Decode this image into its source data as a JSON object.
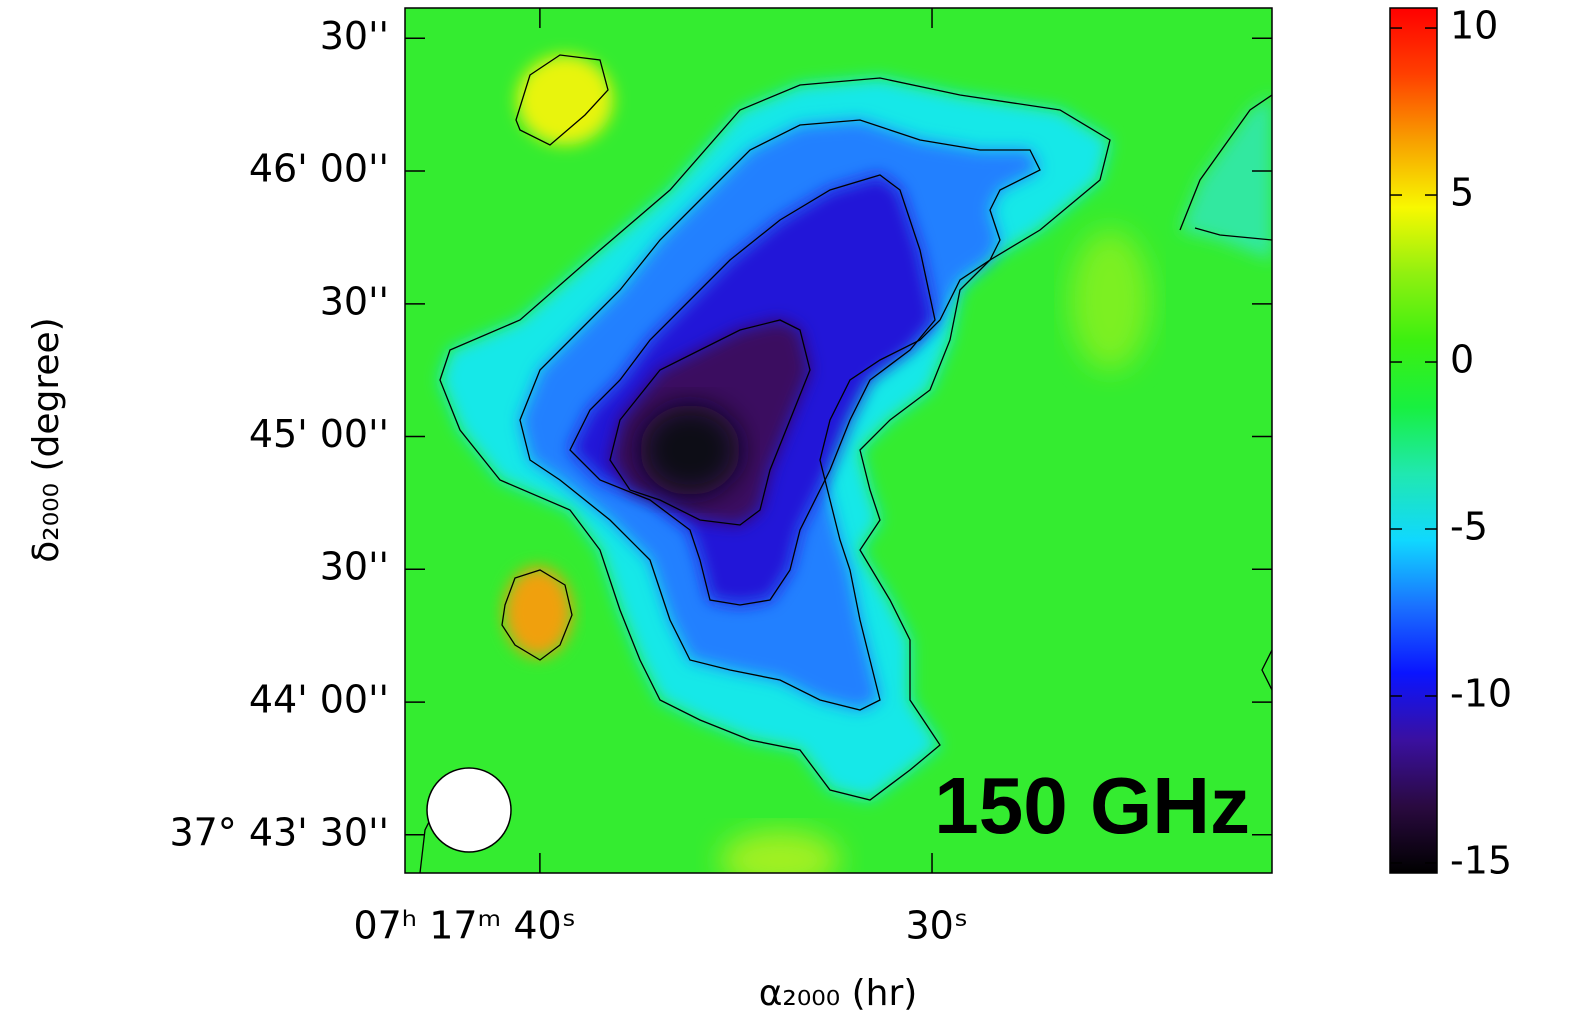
{
  "chart_data": {
    "type": "map",
    "label": "150 GHz",
    "xlabel": "α₂₀₀₀ (hr)",
    "ylabel": "δ₂₀₀₀ (degree)",
    "xlim": [
      43.44,
      21.33
    ],
    "xticks": [
      {
        "value": 40,
        "label": "07ʰ 17ᵐ 40ˢ"
      },
      {
        "value": 30,
        "label": "30ˢ"
      }
    ],
    "ylim": [
      37.7226,
      37.7769
    ],
    "yticks": [
      {
        "value": 37.775,
        "label": "30''"
      },
      {
        "value": 37.76667,
        "label": "46' 00''"
      },
      {
        "value": 37.75833,
        "label": "30''"
      },
      {
        "value": 37.75,
        "label": "45' 00''"
      },
      {
        "value": 37.74167,
        "label": "30''"
      },
      {
        "value": 37.73333,
        "label": "44' 00''"
      },
      {
        "value": 37.725,
        "label": "37° 43' 30''"
      }
    ],
    "colorbar": {
      "lim": [
        -15.3,
        10.6
      ],
      "ticks": [
        10,
        5,
        0,
        -5,
        -10,
        -15
      ],
      "colors": [
        "#000000",
        "#2a0a40",
        "#3a10a0",
        "#0a14ff",
        "#1a70ff",
        "#10d8ff",
        "#20e8b0",
        "#18f040",
        "#3cf010",
        "#90f010",
        "#f8f800",
        "#f8a000",
        "#ff4000",
        "#ff0000"
      ]
    }
  }
}
